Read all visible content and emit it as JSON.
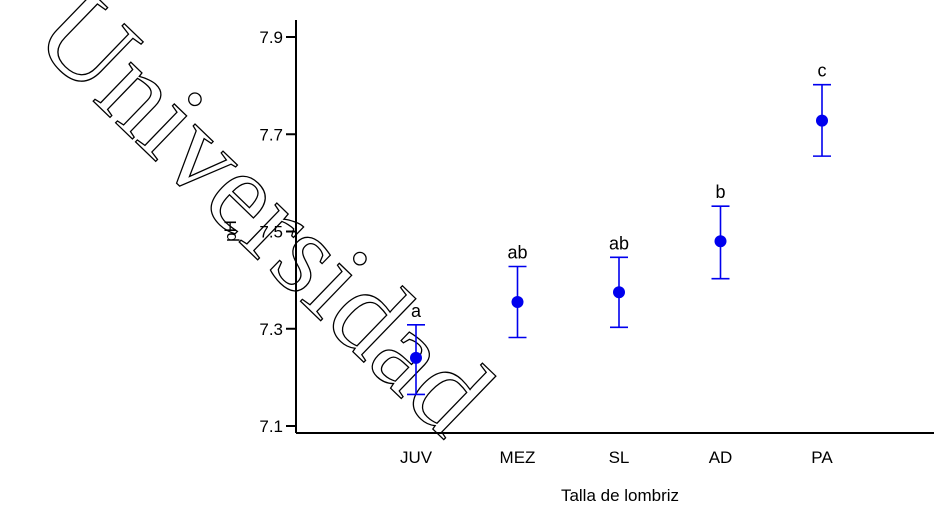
{
  "watermark": "Universidad",
  "chart_data": {
    "type": "scatter",
    "categories": [
      "JUV",
      "MEZ",
      "SL",
      "AD",
      "PA"
    ],
    "series": [
      {
        "values": [
          7.24,
          7.355,
          7.375,
          7.48,
          7.728
        ],
        "error_low": [
          7.165,
          7.282,
          7.303,
          7.403,
          7.655
        ],
        "error_high": [
          7.308,
          7.428,
          7.447,
          7.552,
          7.802
        ],
        "labels": [
          "a",
          "ab",
          "ab",
          "b",
          "c"
        ]
      }
    ],
    "xlabel": "Talla de lombriz",
    "ylabel": "pH",
    "ylim": [
      7.1,
      7.9
    ],
    "yticks": [
      "7.1",
      "7.3",
      "7.5",
      "7.7",
      "7.9"
    ],
    "grid": false,
    "color": "#0000ee"
  }
}
